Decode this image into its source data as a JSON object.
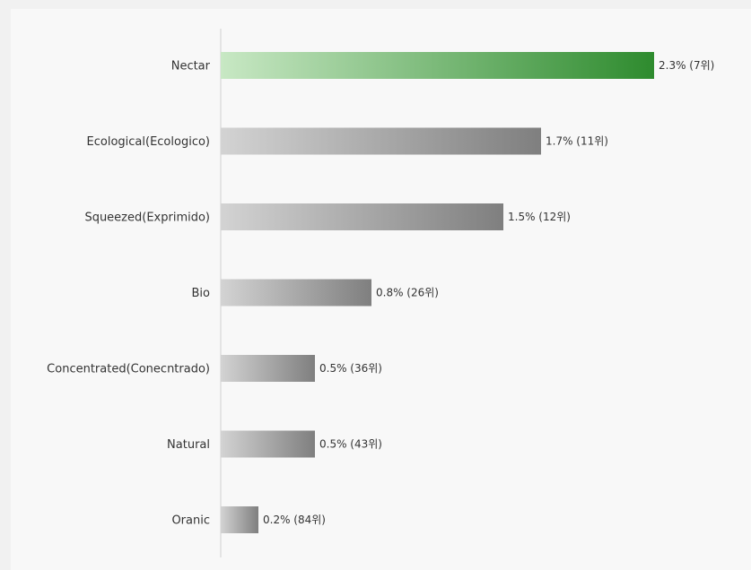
{
  "chart_data": {
    "type": "bar",
    "orientation": "horizontal",
    "title": "",
    "xlabel": "",
    "ylabel": "",
    "xlim": [
      0,
      2.3
    ],
    "grid": false,
    "legend": "none",
    "colors": {
      "highlight_start": "#c8e8c4",
      "highlight_end": "#2e8b2e",
      "bar_start": "#d3d3d3",
      "bar_end": "#7f7f7f",
      "axis": "#d0d0d0"
    },
    "categories": [
      "Nectar",
      "Ecological(Ecologico)",
      "Squeezed(Exprimido)",
      "Bio",
      "Concentrated(Conecntrado)",
      "Natural",
      "Oranic"
    ],
    "values": [
      2.3,
      1.7,
      1.5,
      0.8,
      0.5,
      0.5,
      0.2
    ],
    "data_labels": [
      "2.3% (7위)",
      "1.7% (11위)",
      "1.5% (12위)",
      "0.8% (26위)",
      "0.5% (36위)",
      "0.5% (43위)",
      "0.2% (84위)"
    ],
    "highlight_index": 0
  }
}
